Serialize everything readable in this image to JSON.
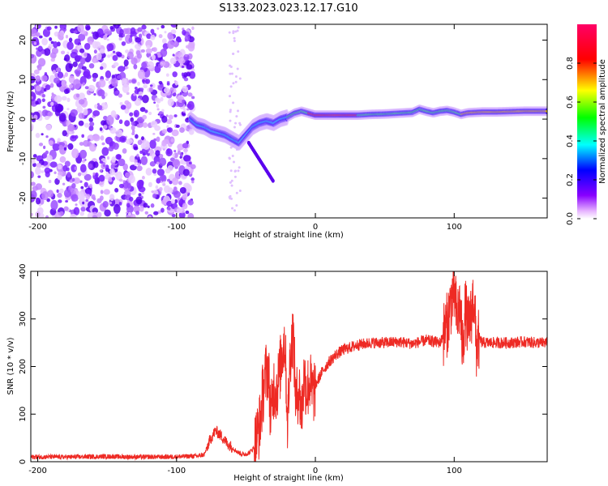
{
  "figure_title": "S133.2023.023.12.17.G10",
  "chart_data": [
    {
      "type": "heatmap",
      "title": "S133.2023.023.12.17.G10",
      "xlabel": "Height of straight line (km)",
      "ylabel": "Frequency (Hz)",
      "xlim": [
        -205,
        167
      ],
      "ylim": [
        -25,
        24
      ],
      "xticks": [
        -200,
        -100,
        0,
        100
      ],
      "yticks": [
        -20,
        -10,
        0,
        10,
        20
      ],
      "grid": false,
      "signal_track": {
        "description_points_x": [
          -90,
          -85,
          -80,
          -75,
          -70,
          -65,
          -60,
          -55,
          -50,
          -45,
          -40,
          -35,
          -30,
          -25,
          -20,
          -15,
          -10,
          -5,
          0,
          10,
          20,
          30,
          40,
          50,
          60,
          70,
          75,
          80,
          85,
          90,
          95,
          100,
          105,
          110,
          120,
          130,
          140,
          150,
          167
        ],
        "frequency_hz": [
          0,
          -1.5,
          -2,
          -3,
          -3.5,
          -4,
          -5,
          -6,
          -4,
          -2,
          -1,
          -0.5,
          -1,
          0,
          0.5,
          1.5,
          2,
          1.5,
          1,
          1,
          1,
          1,
          1.2,
          1.3,
          1.5,
          1.7,
          2.5,
          2,
          1.6,
          2,
          2.2,
          1.8,
          1.2,
          1.6,
          1.8,
          1.8,
          1.9,
          2,
          2
        ]
      },
      "colorbar": {
        "label": "Normalized spectral amplitude",
        "range": [
          0,
          1
        ],
        "ticks": [
          0.0,
          0.2,
          0.4,
          0.6,
          0.8
        ],
        "tick_labels": [
          "0.0",
          "0.2",
          "0.4",
          "0.6",
          "0.8"
        ],
        "colormap": [
          "#ffffff",
          "#8800ff",
          "#0000ff",
          "#00ffff",
          "#00ff00",
          "#ffff00",
          "#ff0000",
          "#ff0066"
        ]
      }
    },
    {
      "type": "line",
      "xlabel": "Height of straight line (km)",
      "ylabel": "SNR (10 * v/v)",
      "xlim": [
        -205,
        167
      ],
      "ylim": [
        0,
        400
      ],
      "xticks": [
        -200,
        -100,
        0,
        100
      ],
      "yticks": [
        0,
        100,
        200,
        300,
        400
      ],
      "grid": false,
      "series": [
        {
          "color": "#ee2a24",
          "x": [
            -205,
            -190,
            -170,
            -150,
            -130,
            -110,
            -95,
            -85,
            -80,
            -76,
            -72,
            -68,
            -64,
            -60,
            -56,
            -52,
            -48,
            -44,
            -40,
            -38,
            -36,
            -34,
            -32,
            -30,
            -28,
            -26,
            -24,
            -22,
            -20,
            -18,
            -16,
            -14,
            -12,
            -10,
            -8,
            -6,
            -4,
            -2,
            0,
            5,
            10,
            15,
            20,
            30,
            40,
            50,
            60,
            70,
            80,
            90,
            95,
            98,
            100,
            102,
            104,
            106,
            108,
            110,
            112,
            114,
            116,
            118,
            120,
            130,
            140,
            150,
            160,
            167
          ],
          "y": [
            10,
            10,
            10,
            11,
            10,
            10,
            11,
            12,
            15,
            45,
            65,
            55,
            40,
            30,
            20,
            15,
            18,
            30,
            80,
            140,
            180,
            200,
            90,
            160,
            150,
            180,
            230,
            260,
            80,
            230,
            270,
            120,
            160,
            100,
            180,
            150,
            170,
            140,
            160,
            190,
            210,
            225,
            235,
            245,
            250,
            250,
            252,
            248,
            255,
            250,
            290,
            340,
            360,
            300,
            330,
            240,
            320,
            280,
            300,
            350,
            240,
            260,
            250,
            250,
            250,
            252,
            250,
            250
          ]
        }
      ]
    }
  ]
}
